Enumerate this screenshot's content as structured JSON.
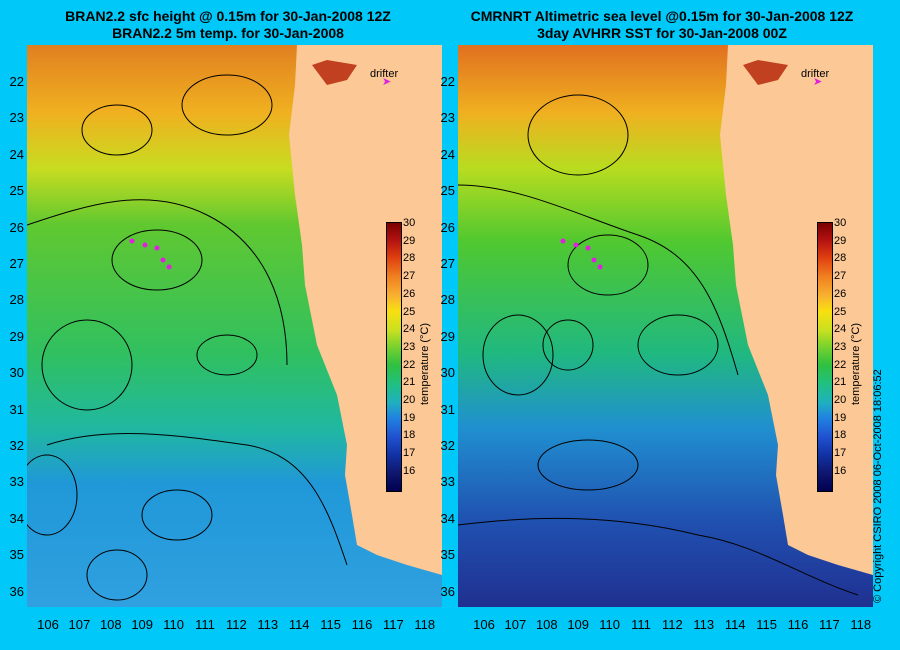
{
  "panels": {
    "left": {
      "title_line1": "BRAN2.2 sfc height @ 0.15m for 30-Jan-2008 12Z",
      "title_line2": "BRAN2.2 5m temp. for 30-Jan-2008"
    },
    "right": {
      "title_line1": "CMRNRT Altimetric sea level  @0.15m  for 30-Jan-2008 12Z",
      "title_line2": "3day AVHRR SST for 30-Jan-2008 00Z"
    }
  },
  "drifter_label": "drifter",
  "axes": {
    "lat_labels": [
      "22",
      "23",
      "24",
      "25",
      "26",
      "27",
      "28",
      "29",
      "30",
      "31",
      "32",
      "33",
      "34",
      "35",
      "36"
    ],
    "lon_labels": [
      "106",
      "107",
      "108",
      "109",
      "110",
      "111",
      "112",
      "113",
      "114",
      "115",
      "116",
      "117",
      "118"
    ]
  },
  "colorbar": {
    "label": "temperature (°C)",
    "ticks": [
      "30",
      "29",
      "28",
      "27",
      "26",
      "25",
      "24",
      "23",
      "22",
      "21",
      "20",
      "19",
      "18",
      "17",
      "16"
    ]
  },
  "copyright": "© Copyright CSIRO 2008     06-Oct-2008 18:06:52",
  "colors": {
    "background": "#00c8f8",
    "land": "#fcc896",
    "drifter": "#e020e0"
  }
}
